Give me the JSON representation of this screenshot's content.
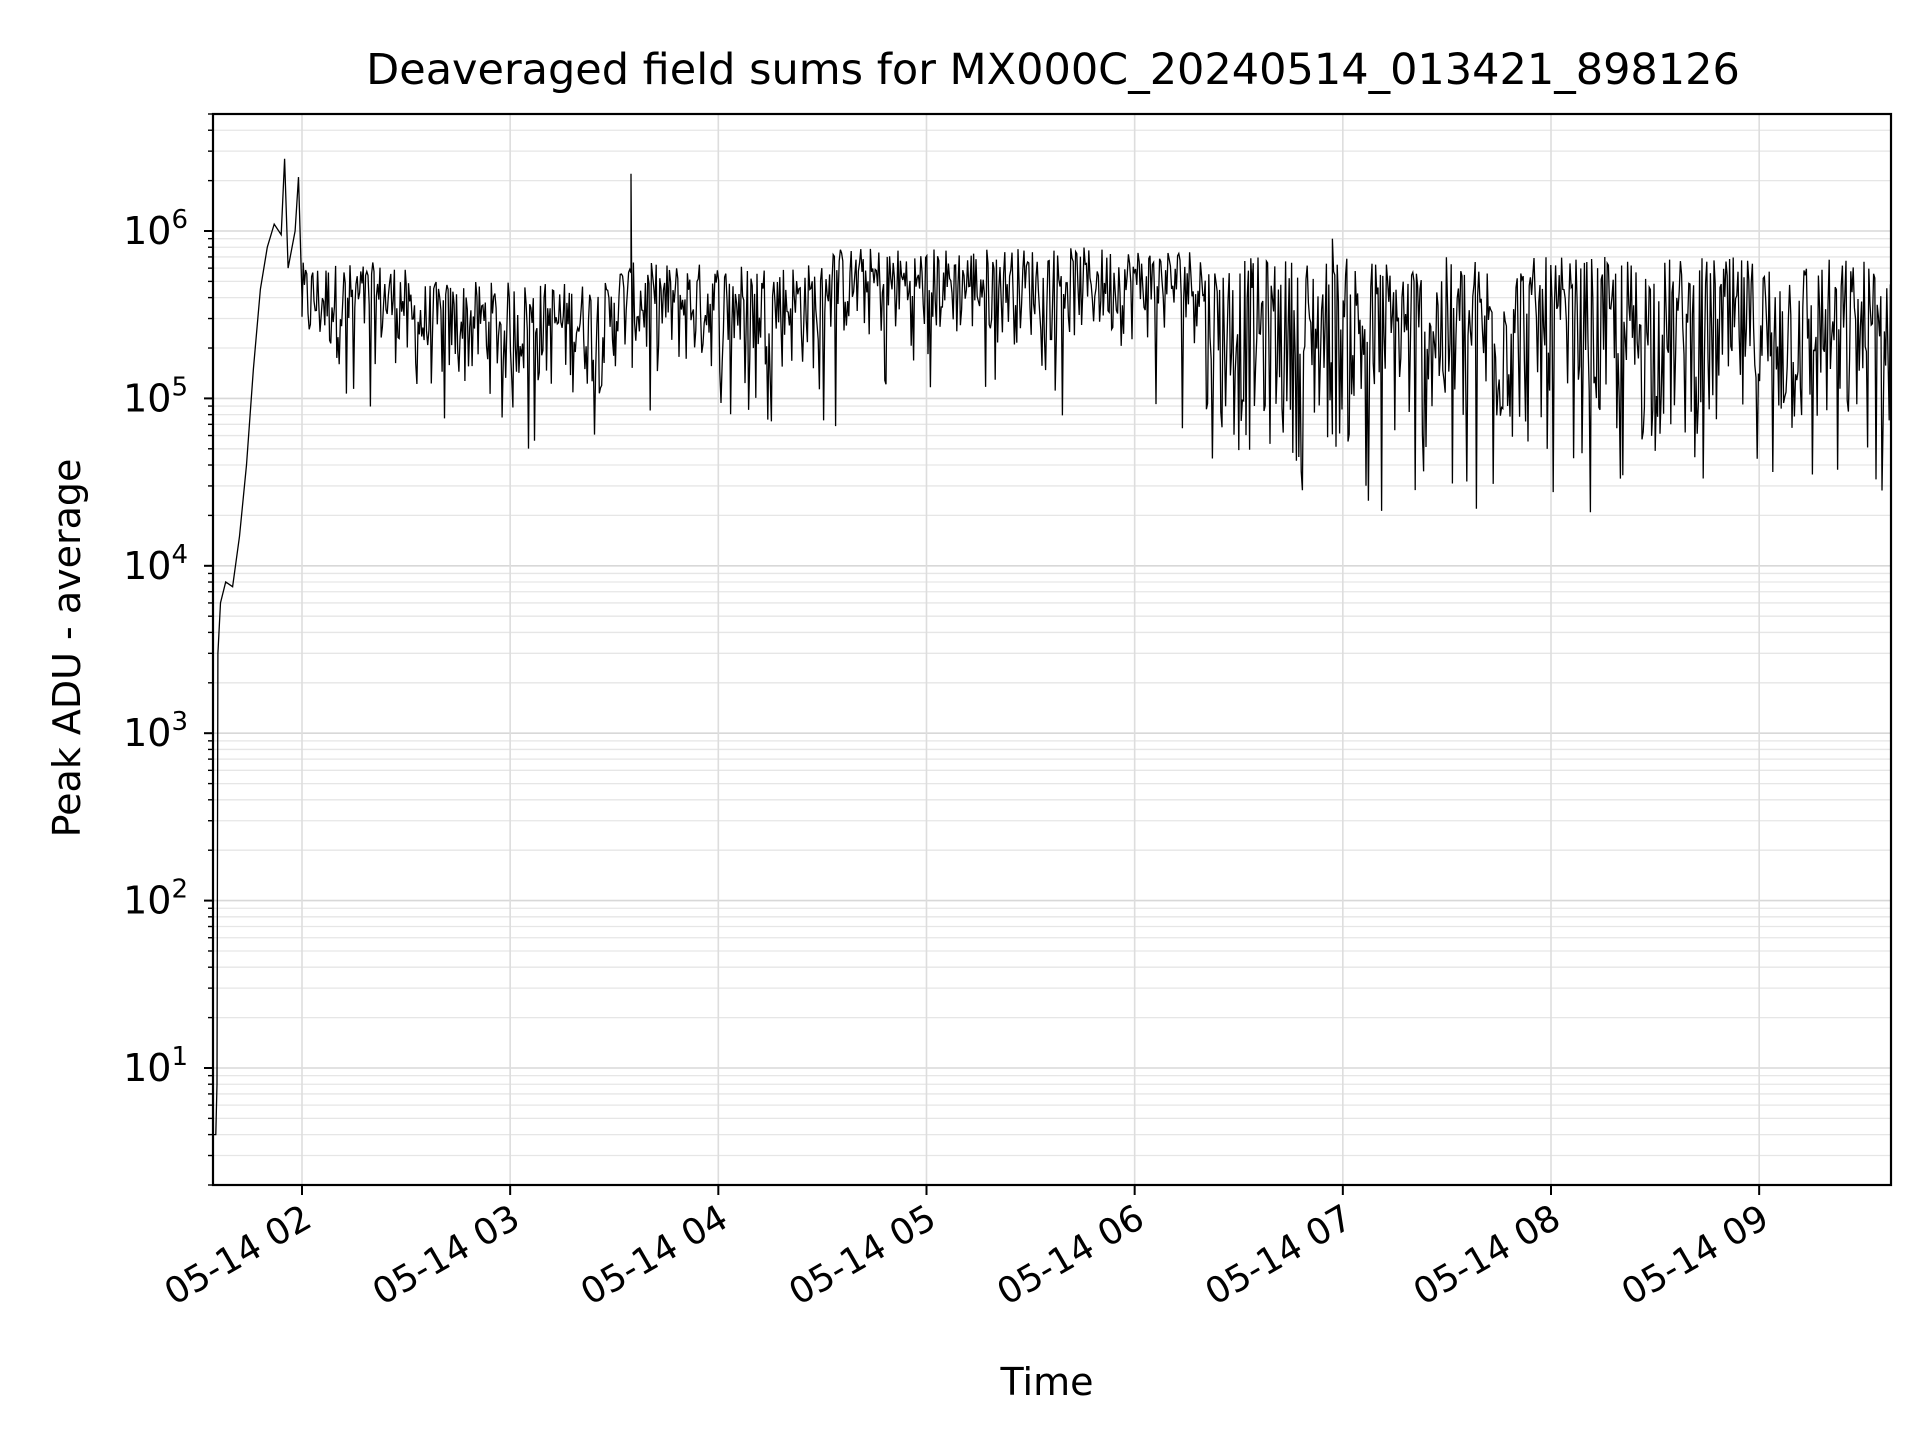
{
  "chart_data": {
    "type": "line",
    "title": "Deaveraged field sums for MX000C_20240514_013421_898126",
    "xlabel": "Time",
    "ylabel": "Peak ADU - average",
    "yscale": "log",
    "ylim": [
      2,
      5000000.0
    ],
    "xlim": [
      "2024-05-14T01:34:21",
      "2024-05-14T09:38:00"
    ],
    "grid": true,
    "x_ticks": [
      {
        "time": "2024-05-14T02:00:00",
        "label": "05-14 02"
      },
      {
        "time": "2024-05-14T03:00:00",
        "label": "05-14 03"
      },
      {
        "time": "2024-05-14T04:00:00",
        "label": "05-14 04"
      },
      {
        "time": "2024-05-14T05:00:00",
        "label": "05-14 05"
      },
      {
        "time": "2024-05-14T06:00:00",
        "label": "05-14 06"
      },
      {
        "time": "2024-05-14T07:00:00",
        "label": "05-14 07"
      },
      {
        "time": "2024-05-14T08:00:00",
        "label": "05-14 08"
      },
      {
        "time": "2024-05-14T09:00:00",
        "label": "05-14 09"
      }
    ],
    "y_ticks": [
      {
        "value": 10,
        "base": "10",
        "exp": "1"
      },
      {
        "value": 100,
        "base": "10",
        "exp": "2"
      },
      {
        "value": 1000,
        "base": "10",
        "exp": "3"
      },
      {
        "value": 10000,
        "base": "10",
        "exp": "4"
      },
      {
        "value": 100000,
        "base": "10",
        "exp": "5"
      },
      {
        "value": 1000000,
        "base": "10",
        "exp": "6"
      }
    ],
    "series": [
      {
        "color": "#000000",
        "points": [
          [
            "2024-05-14T01:34:21",
            4
          ],
          [
            "2024-05-14T01:35:10",
            4
          ],
          [
            "2024-05-14T01:35:30",
            8
          ],
          [
            "2024-05-14T01:35:45",
            3000
          ],
          [
            "2024-05-14T01:36:30",
            6000
          ],
          [
            "2024-05-14T01:38:00",
            8000
          ],
          [
            "2024-05-14T01:40:00",
            7500
          ],
          [
            "2024-05-14T01:42:00",
            15000
          ],
          [
            "2024-05-14T01:44:00",
            40000
          ],
          [
            "2024-05-14T01:46:00",
            150000
          ],
          [
            "2024-05-14T01:48:00",
            450000
          ],
          [
            "2024-05-14T01:50:00",
            800000
          ],
          [
            "2024-05-14T01:52:00",
            1100000
          ],
          [
            "2024-05-14T01:54:00",
            950000
          ],
          [
            "2024-05-14T01:55:00",
            2700000
          ],
          [
            "2024-05-14T01:56:00",
            600000
          ],
          [
            "2024-05-14T01:58:00",
            1000000
          ],
          [
            "2024-05-14T01:59:00",
            2100000
          ],
          [
            "2024-05-14T02:00:00",
            400000
          ]
        ],
        "segments": [
          {
            "start": "2024-05-14T02:00:00",
            "end": "2024-05-14T02:30:00",
            "low": 150000,
            "high": 650000,
            "min": 70000
          },
          {
            "start": "2024-05-14T02:30:00",
            "end": "2024-05-14T03:30:00",
            "low": 100000,
            "high": 500000,
            "min": 45000
          },
          {
            "start": "2024-05-14T03:30:00",
            "end": "2024-05-14T04:30:00",
            "low": 130000,
            "high": 650000,
            "min": 70000
          },
          {
            "start": "2024-05-14T04:30:00",
            "end": "2024-05-14T06:20:00",
            "low": 200000,
            "high": 800000,
            "min": 65000
          },
          {
            "start": "2024-05-14T06:20:00",
            "end": "2024-05-14T09:38:00",
            "low": 40000,
            "high": 700000,
            "min": 20000
          }
        ],
        "spikes": [
          [
            "2024-05-14T03:35:00",
            2200000
          ],
          [
            "2024-05-14T06:57:00",
            900000
          ]
        ]
      }
    ]
  }
}
